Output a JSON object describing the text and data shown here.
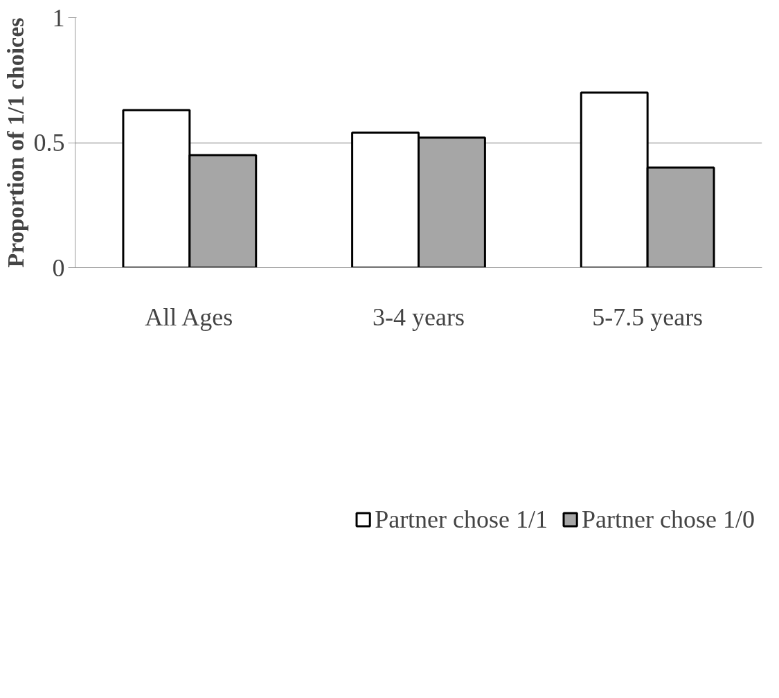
{
  "chart_data": {
    "type": "bar",
    "ylabel": "Proportion of 1/1 choices",
    "categories": [
      "All Ages",
      "3-4 years",
      "5-7.5 years"
    ],
    "series": [
      {
        "name": "Partner chose 1/1",
        "color": "#ffffff",
        "values": [
          0.63,
          0.54,
          0.7
        ]
      },
      {
        "name": "Partner chose 1/0",
        "color": "#a6a6a6",
        "values": [
          0.45,
          0.52,
          0.4
        ]
      }
    ],
    "ylim": [
      0,
      1
    ],
    "yticks": [
      0,
      0.5,
      1
    ],
    "grid": "y",
    "legend": "bottom"
  }
}
